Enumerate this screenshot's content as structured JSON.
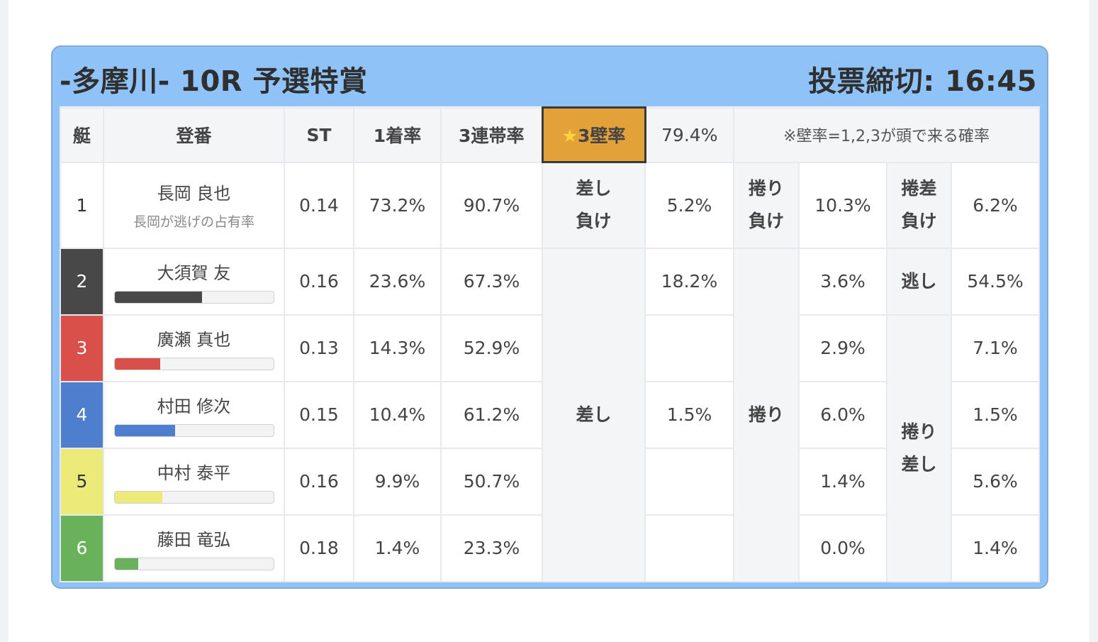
{
  "header": {
    "title": "-多摩川- 10R 予選特賞",
    "deadline": "投票締切: 16:45"
  },
  "columns": {
    "lane": "艇",
    "racer": "登番",
    "st": "ST",
    "first_rate": "1着率",
    "top3_rate": "3連帯率",
    "wall_star": "★",
    "wall_rate": "3壁率",
    "wall_value": "79.4%",
    "wall_note": "※壁率=1,2,3が頭で来る確率"
  },
  "racers": [
    {
      "lane": "1",
      "name": "長岡 良也",
      "sub": "長岡が逃げの占有率",
      "st": "0.14",
      "first": "73.2%",
      "top3": "90.7%",
      "lane_color": "#ffffff",
      "lane_text_color": "#333333"
    },
    {
      "lane": "2",
      "name": "大須賀 友",
      "st": "0.16",
      "first": "23.6%",
      "top3": "67.3%",
      "bar_fraction": 0.55,
      "lane_color": "#484848",
      "lane_text_color": "#ffffff"
    },
    {
      "lane": "3",
      "name": "廣瀬 真也",
      "st": "0.13",
      "first": "14.3%",
      "top3": "52.9%",
      "bar_fraction": 0.29,
      "lane_color": "#d9504a",
      "lane_text_color": "#ffffff"
    },
    {
      "lane": "4",
      "name": "村田 修次",
      "st": "0.15",
      "first": "10.4%",
      "top3": "61.2%",
      "bar_fraction": 0.38,
      "lane_color": "#4e7fce",
      "lane_text_color": "#ffffff"
    },
    {
      "lane": "5",
      "name": "中村 泰平",
      "st": "0.16",
      "first": "9.9%",
      "top3": "50.7%",
      "bar_fraction": 0.3,
      "lane_color": "#ecea78",
      "lane_text_color": "#333333"
    },
    {
      "lane": "6",
      "name": "藤田 竜弘",
      "st": "0.18",
      "first": "1.4%",
      "top3": "23.3%",
      "bar_fraction": 0.15,
      "lane_color": "#6ab25a",
      "lane_text_color": "#ffffff"
    }
  ],
  "patterns": {
    "row1": {
      "sashi_make_1": "差し",
      "sashi_make_2": "負け",
      "sashi_make_value": "5.2%",
      "makuri_make_1": "捲り",
      "makuri_make_2": "負け",
      "makuri_make_value": "10.3%",
      "makurizashi_make_1": "捲差",
      "makurizashi_make_2": "負け",
      "makurizashi_make_value": "6.2%"
    },
    "sashi_label": "差し",
    "sashi_values": [
      "18.2%",
      "",
      "1.5%",
      "",
      ""
    ],
    "makuri_label": "捲り",
    "makuri_values": [
      "3.6%",
      "2.9%",
      "6.0%",
      "1.4%",
      "0.0%"
    ],
    "nige_label": "逃し",
    "nige_value": "54.5%",
    "makurizashi_label_1": "捲り",
    "makurizashi_label_2": "差し",
    "makurizashi_values": [
      "7.1%",
      "1.5%",
      "5.6%",
      "1.4%"
    ]
  },
  "colors": {
    "banner": "#8fc3f7",
    "wall_highlight": "#e3a13a",
    "header_cell": "#f4f5f7"
  }
}
